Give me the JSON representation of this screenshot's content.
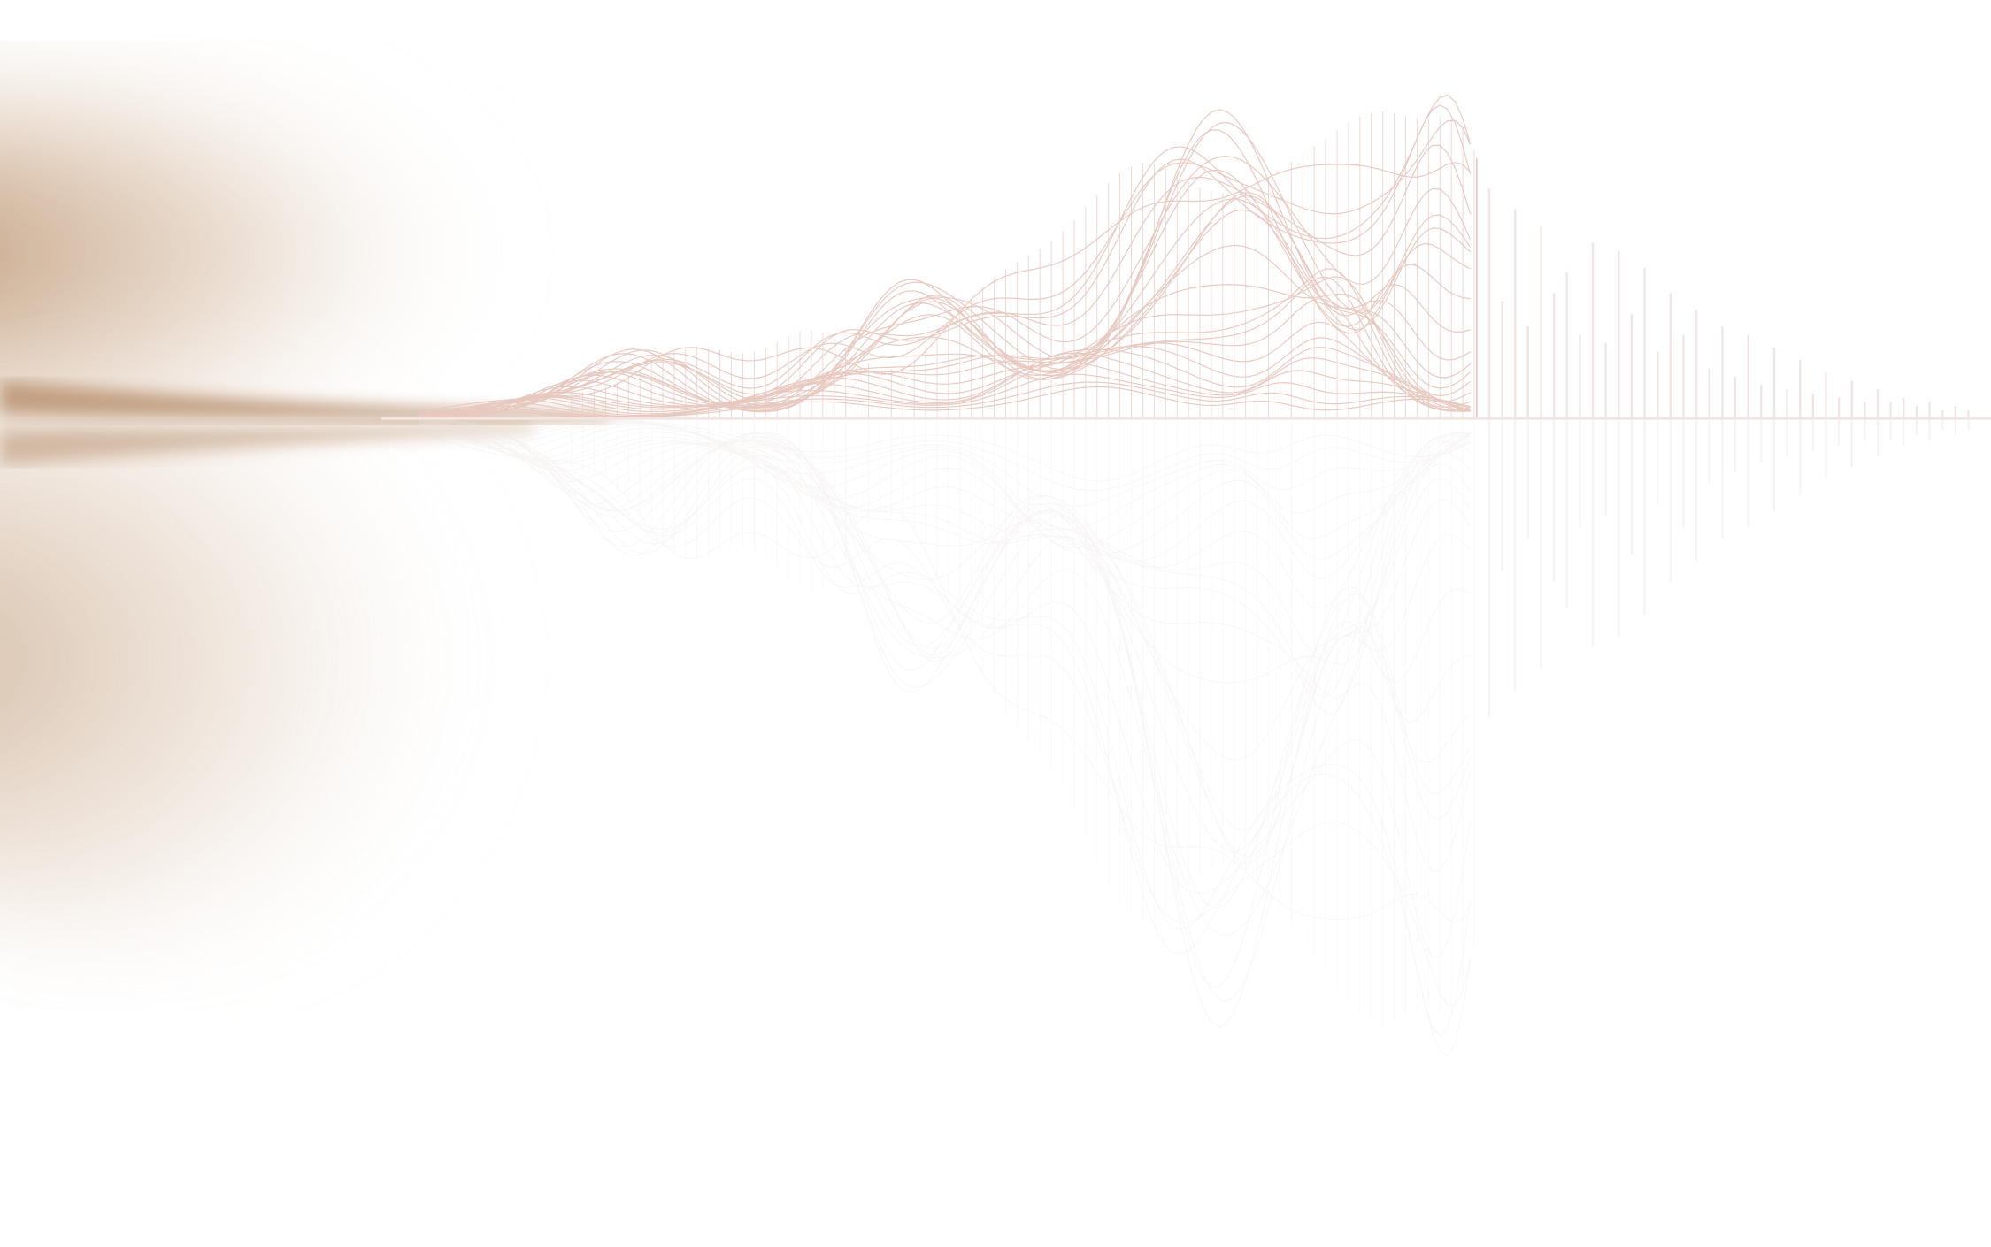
{
  "colors": {
    "background": "#ffffff",
    "haze": "#a8784a",
    "wireframe": "#e8c9c0",
    "reflection": "#ece4e2",
    "bars": "#efe6e4"
  },
  "graphic": {
    "subject": "wireframe-mountain-with-reflection",
    "bar_levels": [
      0.55,
      0.28,
      0.5,
      0.22,
      0.46,
      0.3,
      0.35,
      0.2,
      0.42,
      0.18,
      0.4,
      0.25,
      0.36,
      0.16,
      0.3,
      0.2,
      0.26,
      0.12,
      0.22,
      0.1,
      0.2,
      0.08,
      0.17,
      0.07,
      0.14,
      0.06,
      0.11,
      0.05,
      0.09,
      0.04,
      0.07,
      0.04,
      0.05,
      0.03,
      0.04,
      0.02,
      0.03,
      0.02
    ]
  }
}
